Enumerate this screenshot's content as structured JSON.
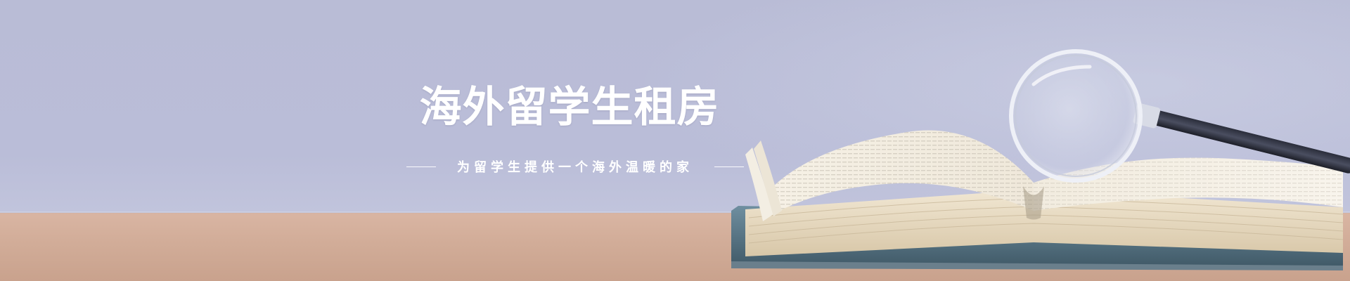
{
  "banner": {
    "headline": "海外留学生租房",
    "tagline": "为留学生提供一个海外温暖的家"
  },
  "scene": {
    "subjects": [
      "open-book",
      "magnifying-glass",
      "wooden-desk"
    ],
    "colors": {
      "wall": "#babdd8",
      "desk": "#d2ad99",
      "text": "#ffffff"
    }
  }
}
